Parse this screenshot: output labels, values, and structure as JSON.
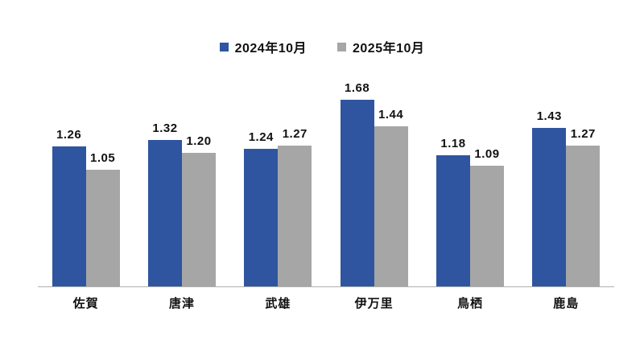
{
  "chart_data": {
    "type": "bar",
    "categories": [
      "佐賀",
      "唐津",
      "武雄",
      "伊万里",
      "鳥栖",
      "鹿島"
    ],
    "series": [
      {
        "name": "2024年10月",
        "color": "#2F55A0",
        "values": [
          1.26,
          1.32,
          1.24,
          1.68,
          1.18,
          1.43
        ]
      },
      {
        "name": "2025年10月",
        "color": "#A6A6A6",
        "values": [
          1.05,
          1.2,
          1.27,
          1.44,
          1.09,
          1.27
        ]
      }
    ],
    "title": "",
    "xlabel": "",
    "ylabel": "",
    "ylim": [
      0,
      1.97
    ],
    "grid": false,
    "y_axis_visible": false,
    "legend_position": "top-center",
    "value_labels": true,
    "value_label_decimals": 2,
    "baseline_color": "#B0B0B0",
    "text_color": "#111111"
  }
}
